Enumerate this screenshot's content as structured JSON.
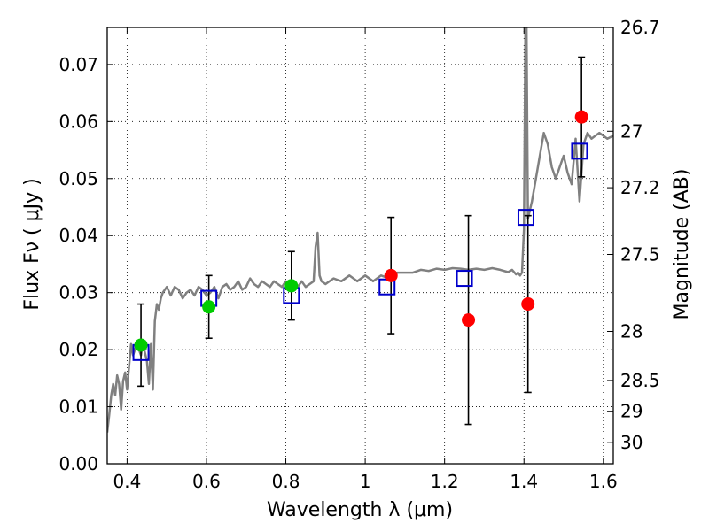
{
  "chart_data": {
    "type": "scatter",
    "xlabel": "Wavelength  λ (μm)",
    "ylabel": "Flux  Fν ( μJy )",
    "ylabel_right": "Magnitude (AB)",
    "xlim": [
      0.35,
      1.625
    ],
    "ylim": [
      0.0,
      0.0765
    ],
    "x_ticks": [
      0.4,
      0.6,
      0.8,
      1.0,
      1.2,
      1.4,
      1.6
    ],
    "x_tick_labels": [
      "0.4",
      "0.6",
      "0.8",
      "1",
      "1.2",
      "1.4",
      "1.6"
    ],
    "y_ticks": [
      0.0,
      0.01,
      0.02,
      0.03,
      0.04,
      0.05,
      0.06,
      0.07
    ],
    "y_tick_labels": [
      "0.00",
      "0.01",
      "0.02",
      "0.03",
      "0.04",
      "0.05",
      "0.06",
      "0.07"
    ],
    "right_axis_ticks": [
      {
        "label": "26.7",
        "flux": 0.0765
      },
      {
        "label": "27",
        "flux": 0.0583
      },
      {
        "label": "27.2",
        "flux": 0.0484
      },
      {
        "label": "27.5",
        "flux": 0.0367
      },
      {
        "label": "28",
        "flux": 0.0232
      },
      {
        "label": "28.5",
        "flux": 0.0146
      },
      {
        "label": "29",
        "flux": 0.0092
      },
      {
        "label": "30",
        "flux": 0.0037
      }
    ],
    "grid": true,
    "series": [
      {
        "kind": "model-spectrum",
        "color": "#808080",
        "x": [
          0.35,
          0.355,
          0.36,
          0.365,
          0.37,
          0.375,
          0.38,
          0.385,
          0.39,
          0.395,
          0.4,
          0.405,
          0.41,
          0.415,
          0.42,
          0.425,
          0.43,
          0.435,
          0.44,
          0.445,
          0.45,
          0.455,
          0.46,
          0.465,
          0.47,
          0.475,
          0.48,
          0.485,
          0.49,
          0.5,
          0.51,
          0.52,
          0.53,
          0.54,
          0.55,
          0.56,
          0.57,
          0.58,
          0.59,
          0.6,
          0.61,
          0.62,
          0.63,
          0.64,
          0.65,
          0.66,
          0.67,
          0.68,
          0.69,
          0.7,
          0.71,
          0.72,
          0.73,
          0.74,
          0.75,
          0.76,
          0.77,
          0.78,
          0.79,
          0.8,
          0.81,
          0.82,
          0.83,
          0.84,
          0.85,
          0.86,
          0.87,
          0.875,
          0.88,
          0.885,
          0.89,
          0.9,
          0.92,
          0.94,
          0.96,
          0.98,
          1.0,
          1.02,
          1.04,
          1.06,
          1.08,
          1.1,
          1.12,
          1.14,
          1.16,
          1.18,
          1.2,
          1.22,
          1.24,
          1.26,
          1.28,
          1.3,
          1.32,
          1.34,
          1.36,
          1.37,
          1.38,
          1.385,
          1.39,
          1.395,
          1.4,
          1.405,
          1.41,
          1.42,
          1.43,
          1.44,
          1.45,
          1.46,
          1.47,
          1.48,
          1.49,
          1.5,
          1.51,
          1.52,
          1.53,
          1.54,
          1.55,
          1.56,
          1.57,
          1.58,
          1.59,
          1.6,
          1.61,
          1.625
        ],
        "y": [
          0.0055,
          0.0085,
          0.012,
          0.014,
          0.012,
          0.0155,
          0.014,
          0.0095,
          0.0145,
          0.016,
          0.013,
          0.017,
          0.021,
          0.019,
          0.02,
          0.021,
          0.02,
          0.019,
          0.021,
          0.0195,
          0.018,
          0.014,
          0.021,
          0.013,
          0.025,
          0.028,
          0.027,
          0.029,
          0.03,
          0.031,
          0.0295,
          0.031,
          0.0305,
          0.029,
          0.03,
          0.0305,
          0.0295,
          0.031,
          0.0305,
          0.0295,
          0.03,
          0.031,
          0.029,
          0.031,
          0.0315,
          0.0305,
          0.031,
          0.032,
          0.0305,
          0.031,
          0.0325,
          0.0315,
          0.031,
          0.032,
          0.0315,
          0.031,
          0.032,
          0.0315,
          0.031,
          0.032,
          0.0315,
          0.032,
          0.031,
          0.032,
          0.031,
          0.0315,
          0.032,
          0.038,
          0.0405,
          0.033,
          0.032,
          0.0315,
          0.0325,
          0.032,
          0.033,
          0.032,
          0.033,
          0.032,
          0.033,
          0.0325,
          0.0335,
          0.0335,
          0.0335,
          0.034,
          0.0338,
          0.0342,
          0.034,
          0.0343,
          0.0342,
          0.034,
          0.0342,
          0.034,
          0.0343,
          0.034,
          0.0336,
          0.034,
          0.0332,
          0.0335,
          0.033,
          0.0335,
          0.041,
          0.09,
          0.043,
          0.046,
          0.05,
          0.054,
          0.058,
          0.056,
          0.052,
          0.05,
          0.052,
          0.054,
          0.051,
          0.049,
          0.057,
          0.046,
          0.056,
          0.058,
          0.057,
          0.0575,
          0.058,
          0.0575,
          0.057,
          0.0575
        ]
      },
      {
        "kind": "model-photometry",
        "marker": "open-square",
        "color": "#0000cc",
        "x": [
          0.435,
          0.606,
          0.814,
          1.055,
          1.25,
          1.405,
          1.54
        ],
        "y": [
          0.0195,
          0.029,
          0.0295,
          0.031,
          0.0325,
          0.0432,
          0.0548
        ]
      },
      {
        "kind": "observed-green",
        "marker": "filled-circle",
        "color": "#00cc00",
        "x": [
          0.435,
          0.606,
          0.814
        ],
        "y": [
          0.0208,
          0.0275,
          0.0312
        ],
        "yerr": [
          0.0072,
          0.0055,
          0.006
        ]
      },
      {
        "kind": "observed-red",
        "marker": "filled-circle",
        "color": "#ff0000",
        "x": [
          1.065,
          1.26,
          1.41,
          1.545
        ],
        "y": [
          0.033,
          0.0252,
          0.028,
          0.0608
        ],
        "yerr": [
          0.0102,
          0.0183,
          0.0155,
          0.0105
        ]
      }
    ]
  }
}
